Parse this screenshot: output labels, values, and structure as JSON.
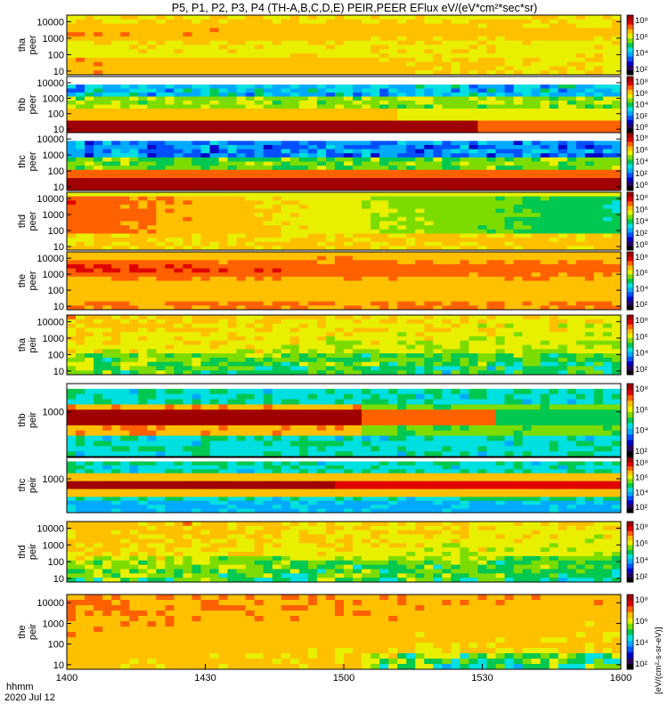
{
  "title": "P5, P1, P2, P3, P4 (TH-A,B,C,D,E) PEIR,PEER EFlux eV/(eV*cm²*sec*sr)",
  "footer": {
    "axis_name": "hhmm",
    "date": "2020 Jul 12"
  },
  "colorbar": {
    "unit_label": "[eV/(cm²-s-sr-eV)]",
    "colors": [
      "#000000",
      "#2a005a",
      "#0000c8",
      "#0050ff",
      "#00aaff",
      "#00e0e0",
      "#00c850",
      "#7cdc00",
      "#e8f000",
      "#ffc000",
      "#ff6000",
      "#e00000",
      "#a00000"
    ]
  },
  "chart_data": [
    {
      "type": "heatmap",
      "probe": "tha",
      "species": "peer",
      "ylabel": "tha\npeer",
      "yticks": [
        "10",
        "100",
        "1000",
        "10000"
      ],
      "cb_ticks": [
        "10⁸",
        "10⁶",
        "10⁴",
        "10²"
      ],
      "x_range": [
        "1400",
        "1600"
      ]
    },
    {
      "type": "heatmap",
      "probe": "thb",
      "species": "peer",
      "ylabel": "thb\npeer",
      "yticks": [
        "10",
        "100",
        "1000",
        "10000"
      ],
      "cb_ticks": [
        "10⁸",
        "10⁶",
        "10⁴",
        "10²",
        "10⁰"
      ],
      "x_range": [
        "1400",
        "1600"
      ]
    },
    {
      "type": "heatmap",
      "probe": "thc",
      "species": "peer",
      "ylabel": "thc\npeer",
      "yticks": [
        "10",
        "100",
        "1000",
        "10000"
      ],
      "cb_ticks": [
        "10⁸",
        "10⁶",
        "10⁴",
        "10²",
        "10⁰"
      ],
      "x_range": [
        "1400",
        "1600"
      ]
    },
    {
      "type": "heatmap",
      "probe": "thd",
      "species": "peer",
      "ylabel": "thd\npeer",
      "yticks": [
        "10",
        "100",
        "1000",
        "10000"
      ],
      "cb_ticks": [
        "10⁸",
        "10⁶",
        "10⁴",
        "10²",
        "10⁰"
      ],
      "x_range": [
        "1400",
        "1600"
      ]
    },
    {
      "type": "heatmap",
      "probe": "the",
      "species": "peer",
      "ylabel": "the\npeer",
      "yticks": [
        "10",
        "100",
        "1000",
        "10000"
      ],
      "cb_ticks": [
        "10⁸",
        "10⁶",
        "10⁴",
        "10²"
      ],
      "x_range": [
        "1400",
        "1600"
      ]
    },
    {
      "type": "heatmap",
      "probe": "tha",
      "species": "peir",
      "ylabel": "tha\npeir",
      "yticks": [
        "10",
        "100",
        "1000",
        "10000"
      ],
      "cb_ticks": [
        "10⁸",
        "10⁶",
        "10⁴",
        "10²"
      ],
      "x_range": [
        "1400",
        "1600"
      ]
    },
    {
      "type": "heatmap",
      "probe": "thb",
      "species": "peir",
      "ylabel": "thb\npeir",
      "yticks": [
        "1000"
      ],
      "cb_ticks": [
        "10⁸",
        "10⁶",
        "10⁴",
        "10²"
      ],
      "x_range": [
        "1400",
        "1600"
      ]
    },
    {
      "type": "heatmap",
      "probe": "thc",
      "species": "peir",
      "ylabel": "thc\npeir",
      "yticks": [
        "1000"
      ],
      "cb_ticks": [
        "10⁸",
        "10⁶",
        "10⁴",
        "10²"
      ],
      "x_range": [
        "1400",
        "1600"
      ]
    },
    {
      "type": "heatmap",
      "probe": "thd",
      "species": "peir",
      "ylabel": "thd\npeir",
      "yticks": [
        "10",
        "100",
        "1000",
        "10000"
      ],
      "cb_ticks": [
        "10⁸",
        "10⁶",
        "10⁴",
        "10²"
      ],
      "x_range": [
        "1400",
        "1600"
      ]
    },
    {
      "type": "heatmap",
      "probe": "the",
      "species": "peir",
      "ylabel": "the\npeir",
      "yticks": [
        "10",
        "100",
        "1000",
        "10000"
      ],
      "cb_ticks": [
        "10⁸",
        "10⁶",
        "10⁴",
        "10²"
      ],
      "x_range": [
        "1400",
        "1600"
      ]
    }
  ],
  "x_axis": {
    "ticks": [
      "1400",
      "1430",
      "1500",
      "1530",
      "1600"
    ]
  }
}
